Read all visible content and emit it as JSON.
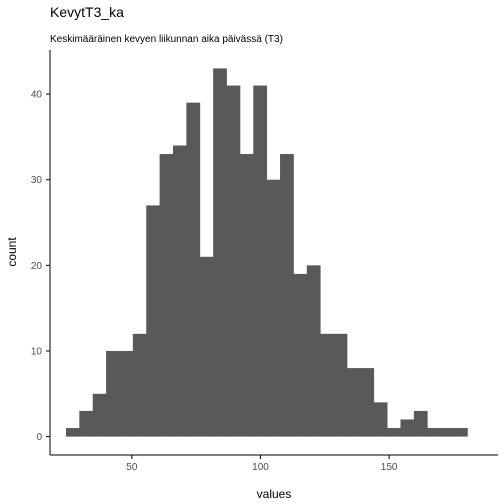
{
  "chart_data": {
    "type": "bar",
    "title": "KevytT3_ka",
    "subtitle": "Keskimääräinen kevyen liikunnan aika päivässä (T3)",
    "xlabel": "values",
    "ylabel": "count",
    "xlim": [
      18.2,
      192.3
    ],
    "ylim": [
      -2.15,
      45.15
    ],
    "x_ticks": [
      50,
      100,
      150
    ],
    "y_ticks": [
      0,
      10,
      20,
      30,
      40
    ],
    "bin_width": 5.2,
    "bin_start": 24.4,
    "values": [
      1,
      3,
      5,
      10,
      10,
      12,
      27,
      33,
      34,
      39,
      21,
      43,
      41,
      33,
      41,
      30,
      33,
      19,
      20,
      12,
      12,
      8,
      8,
      4,
      1,
      2,
      3,
      1,
      1,
      1
    ],
    "bar_color": "#595959",
    "grid": false
  }
}
